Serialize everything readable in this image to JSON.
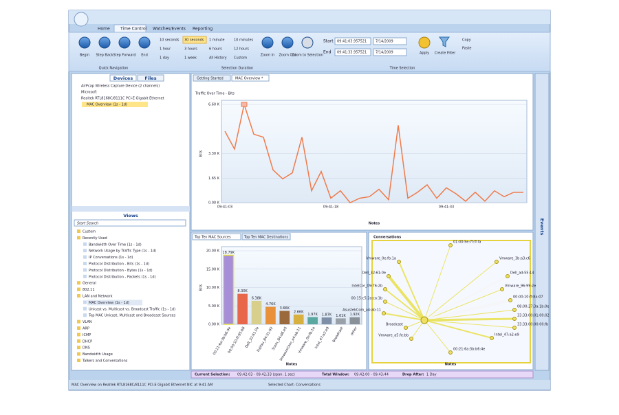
{
  "ribbon": {
    "tabs": [
      "Home",
      "Time Control",
      "Watches/Events",
      "Reporting"
    ],
    "navigation": [
      "Begin",
      "Step Back",
      "Step Forward",
      "End"
    ],
    "durations": [
      "10 seconds",
      "30 seconds",
      "1 minute",
      "10 minutes",
      "1 hour",
      "3 hours",
      "6 hours",
      "12 hours",
      "1 day",
      "1 week",
      "All History",
      "Custom"
    ],
    "zoom": [
      "Zoom In",
      "Zoom Out",
      "Zoom to Selection"
    ],
    "start_label": "Start",
    "start_time": "09:41:03.957521",
    "start_date": "7/14/2009",
    "end_label": "End",
    "end_time": "09:41:33.957521",
    "end_date": "7/14/2009",
    "apply": "Apply",
    "create_filter": "Create Filter",
    "copy": "Copy",
    "paste": "Paste",
    "groups": [
      "Quick Navigation",
      "Selection Duration",
      "Time Selection"
    ]
  },
  "devices": {
    "tabs": [
      "Devices",
      "Files"
    ],
    "items": [
      "AirPcap Wireless Capture Device (2 channels)",
      "Microsoft",
      "Realtek RTL8168C/8111C PCI-E Gigabit Ethernet",
      "MAC Overview (1s - 1d)"
    ]
  },
  "views": {
    "title": "Views",
    "search": "Start Search",
    "items": [
      "Custom",
      "Recently Used",
      "Bandwidth Over Time (1s - 1d)",
      "Network Usage by Traffic Type (1s - 1d)",
      "IP Conversations (1s - 1d)",
      "Protocol Distribution - Bits (1s - 1d)",
      "Protocol Distribution - Bytes (1s - 1d)",
      "Protocol Distribution - Packets (1s - 1d)",
      "General",
      "802.11",
      "LAN and Network",
      "MAC Overview (1s - 1d)",
      "Unicast vs. Multicast vs. Broadcast Traffic (1s - 1d)",
      "Top MAC Unicast, Multicast and Broadcast Sources",
      "VLAN",
      "ARP",
      "ICMP",
      "DHCP",
      "DNS",
      "Bandwidth Usage",
      "Talkers and Conversations"
    ]
  },
  "doc_tabs": [
    "Getting Started",
    "MAC Overview *"
  ],
  "bar_tabs": [
    "Top Ten MAC Sources",
    "Top Ten MAC Destinations"
  ],
  "conversations": {
    "title": "Conversations",
    "x_label": "Notes",
    "nodes": [
      "01:00:5e:7f:ff:fa",
      "Vmware_0e:fb:1a",
      "Vmware_3b:a3:c6",
      "Dell_32:61:0e",
      "Dell_ad:55:14",
      "IntelCor_09:76:2b",
      "Vmware_96:99:2e",
      "00:15:c5:2a:ca:1b",
      "00:00:10:ff:8a:07",
      "08:00:27:3a:1b:0e",
      "AsustekCom_a4:ab:11",
      "33:33:00:01:00:02",
      "33:33:00:00:00:fb",
      "Broadcast",
      "Vmware_a5:fe:bb",
      "Intel_47:a2:e9",
      "00:21:6a:3b:b6:4e"
    ]
  },
  "side_panel": "Events",
  "status": {
    "current_label": "Current Selection:",
    "current": "09:42:03 - 09:42:33 (span: 1 sec)",
    "total_label": "Total Window:",
    "total": "09:42:00 - 09:43:44",
    "drop_label": "Drop After:",
    "drop": "1 Day",
    "footer": "MAC Overview on Realtek RTL8168C/8111C PCI-E Gigabit Ethernet NIC at 9:41 AM",
    "selected": "Selected Chart: Conversations"
  },
  "chart_data": [
    {
      "type": "line",
      "title": "Traffic Over Time - Bits",
      "y_label": "Bits",
      "x_label": "Notes",
      "color": "#f07a4a",
      "grid": true,
      "categories": [
        "09:41:03",
        null,
        null,
        null,
        null,
        null,
        null,
        null,
        null,
        null,
        null,
        "09:41:18",
        null,
        null,
        null,
        null,
        null,
        null,
        null,
        null,
        null,
        null,
        null,
        "09:41:33",
        null,
        null,
        null,
        null,
        null,
        null,
        null,
        null
      ],
      "values": [
        4.8,
        3.6,
        6.6,
        4.6,
        4.4,
        2.2,
        1.6,
        2.0,
        4.4,
        0.8,
        2.1,
        0.3,
        0.8,
        0.0,
        0.3,
        0.4,
        0.9,
        0.2,
        5.2,
        0.3,
        0.7,
        1.2,
        0.3,
        1.0,
        0.6,
        0.1,
        0.7,
        0.1,
        0.8,
        0.4,
        0.7,
        0.7
      ],
      "ylim": [
        0,
        6.6
      ],
      "yticks": [
        {
          "value": 0,
          "label": "0.00 K"
        },
        {
          "value": 1.65,
          "label": "1.65 K"
        },
        {
          "value": 3.3,
          "label": "3.30 K"
        },
        {
          "value": 6.6,
          "label": "6.60 K"
        }
      ]
    },
    {
      "type": "bar",
      "y_label": "Bits",
      "x_label": "Notes",
      "grid": true,
      "categories": [
        "00:21:6a:3b:b6:4e",
        "00:00:10:ff:95:b8",
        "Dell_32:61:0e",
        "Fujitsu_84:31:92",
        "3com_84:d6:e5",
        "VmwareCom_a4:ab:11",
        "Vmware_0e:fb:1a",
        "Intel_47:a2:e9",
        "Broadcast",
        "other"
      ],
      "values": [
        18.79,
        8.3,
        6.38,
        4.76,
        3.66,
        2.66,
        1.97,
        1.87,
        1.61,
        1.92
      ],
      "value_labels": [
        "18.79K",
        "8.30K",
        "6.38K",
        "4.76K",
        "3.66K",
        "2.66K",
        "1.97K",
        "1.87K",
        "1.61K",
        "1.92K"
      ],
      "colors": [
        "#a68fd8",
        "#e8664a",
        "#d9cf8c",
        "#e8903a",
        "#9a6a3c",
        "#d8b040",
        "#5aa8a0",
        "#7f8fa8",
        "#9aa0a8",
        "#8a9098"
      ],
      "ylim": [
        0,
        20
      ],
      "yticks": [
        {
          "value": 0,
          "label": "0.00 K"
        },
        {
          "value": 5,
          "label": "5.00 K"
        },
        {
          "value": 10,
          "label": "10.00 K"
        },
        {
          "value": 15,
          "label": "15.00 K"
        },
        {
          "value": 20,
          "label": "20.00 K"
        }
      ]
    }
  ]
}
